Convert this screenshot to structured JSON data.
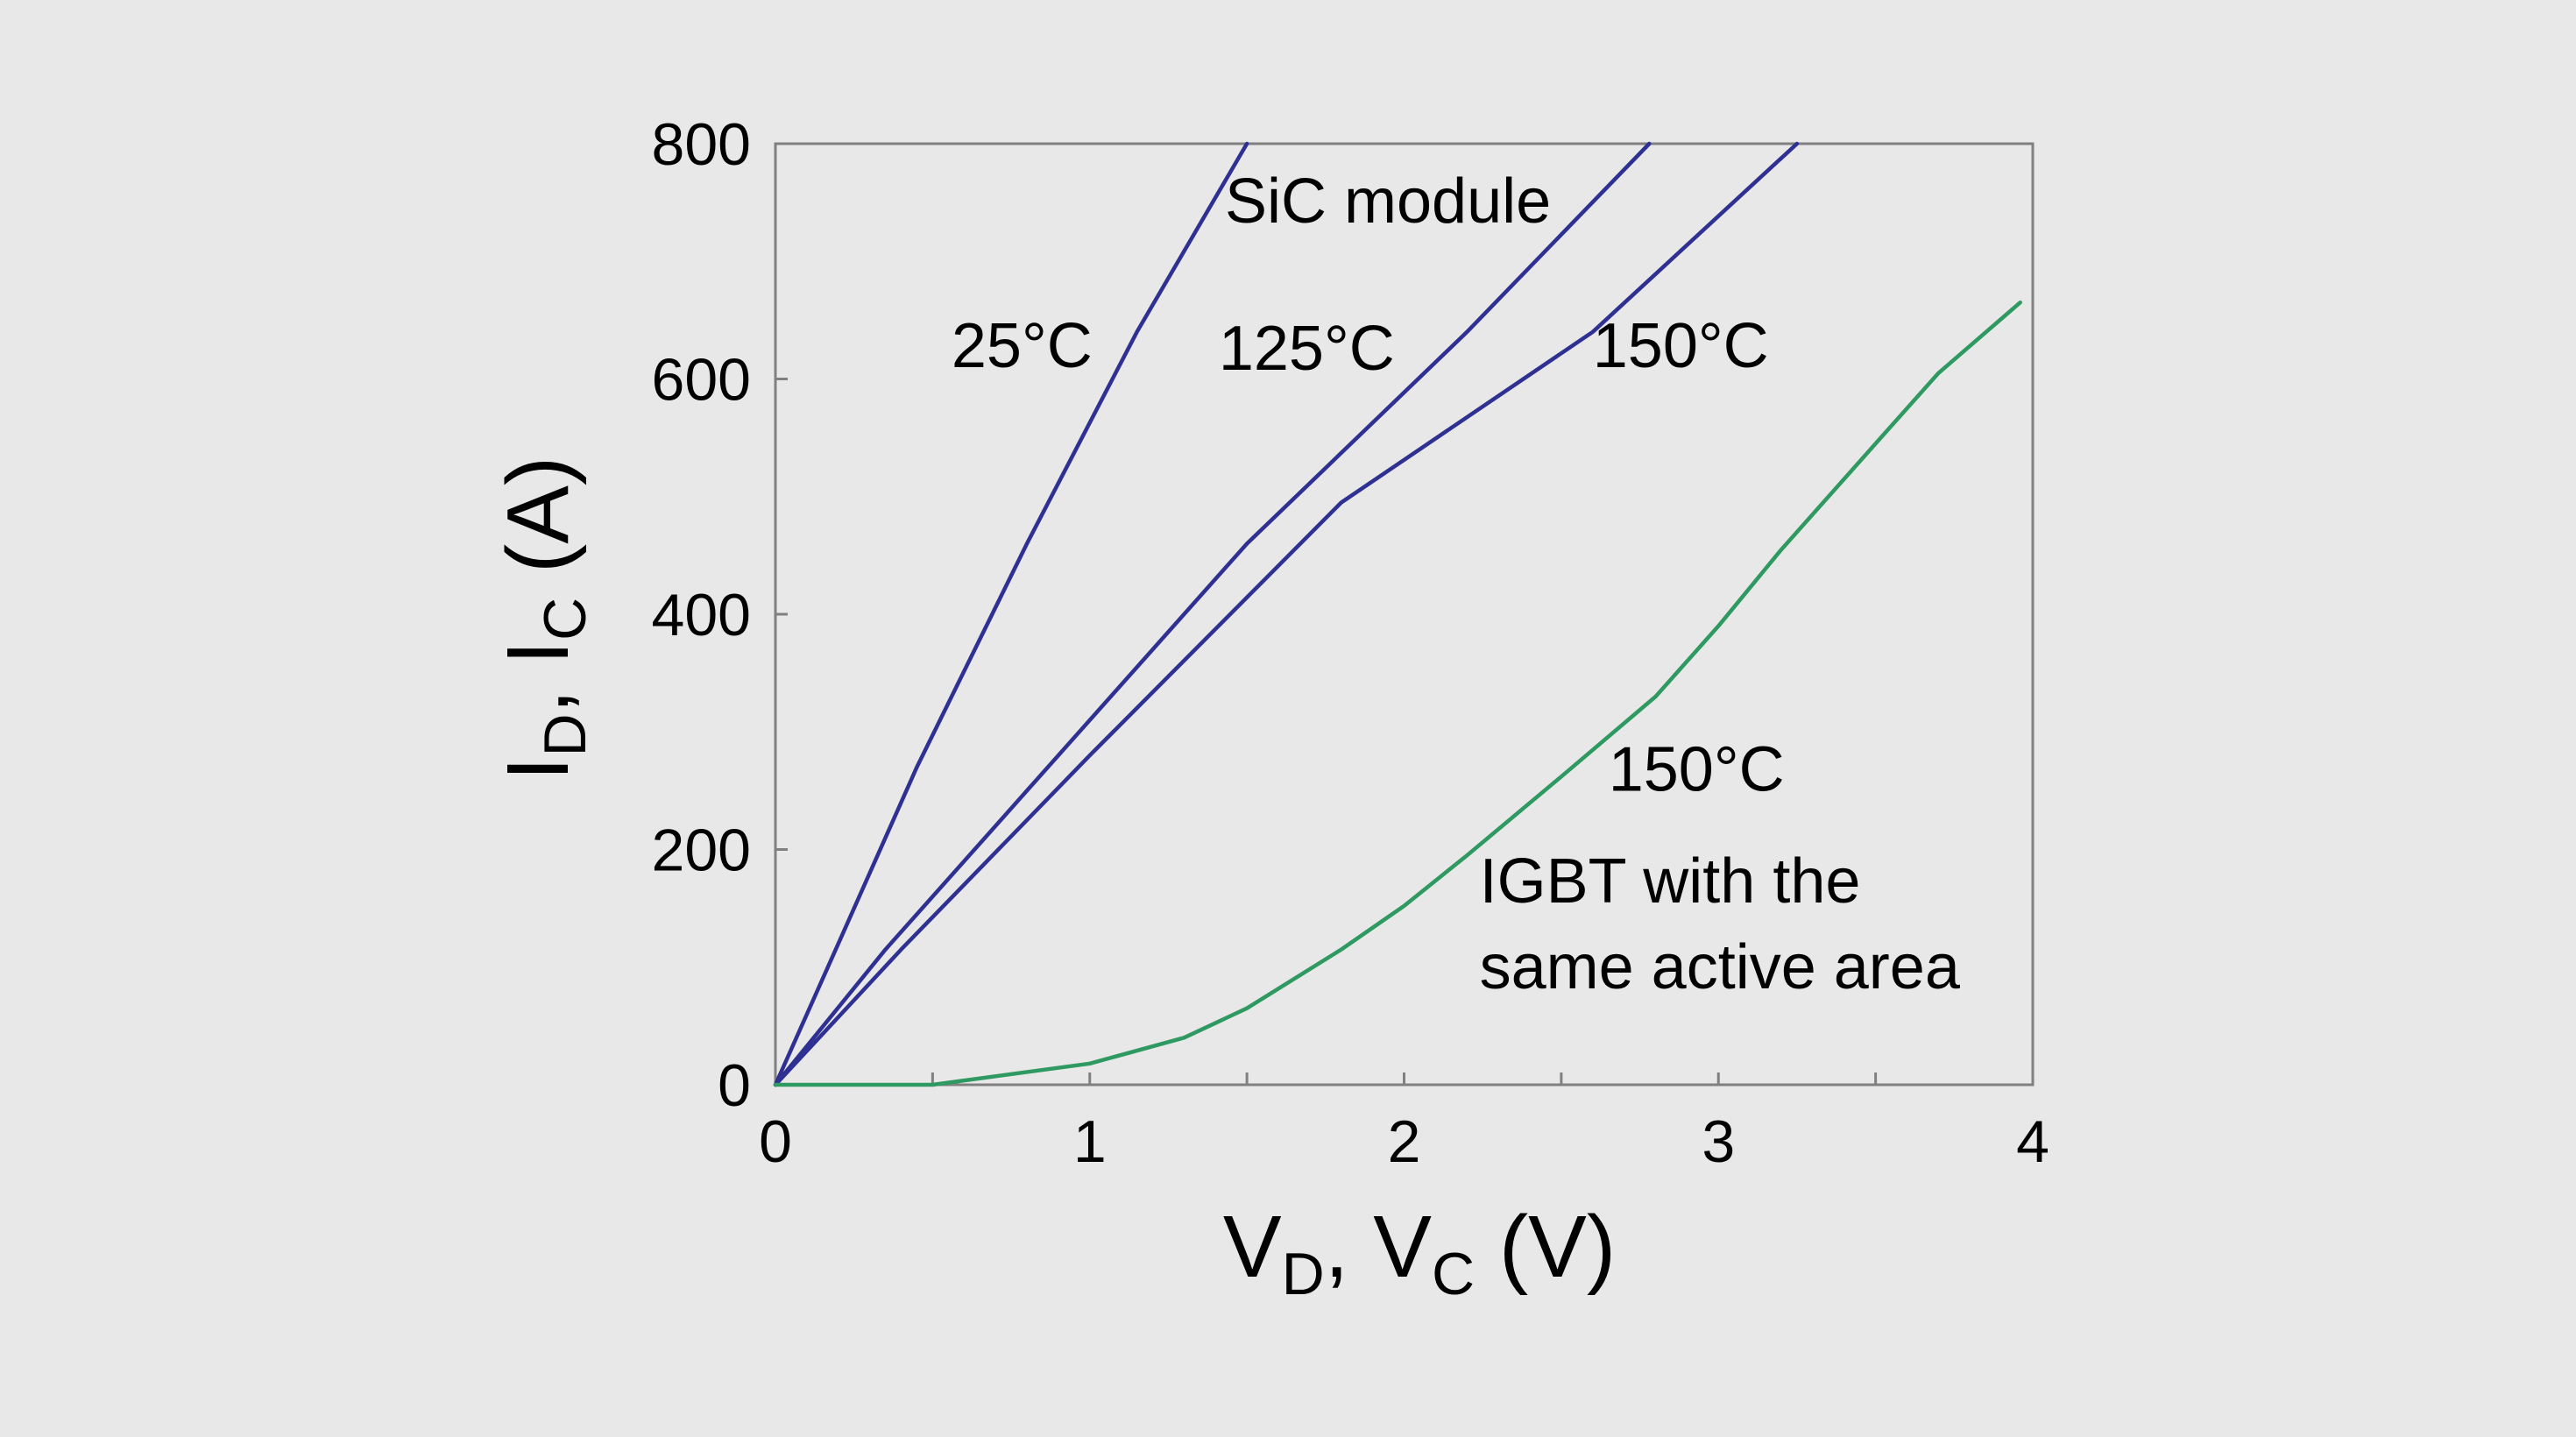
{
  "chart_data": {
    "type": "line",
    "title": "",
    "xlabel": {
      "parts": [
        {
          "text": "V",
          "sub": false
        },
        {
          "text": "D",
          "sub": true
        },
        {
          "text": ", V",
          "sub": false
        },
        {
          "text": "C",
          "sub": true
        },
        {
          "text": " (V)",
          "sub": false
        }
      ]
    },
    "ylabel": {
      "parts": [
        {
          "text": "I",
          "sub": false
        },
        {
          "text": "D",
          "sub": true
        },
        {
          "text": ", I",
          "sub": false
        },
        {
          "text": "C",
          "sub": true
        },
        {
          "text": " (A)",
          "sub": false
        }
      ]
    },
    "xlim": [
      0,
      4
    ],
    "ylim": [
      0,
      800
    ],
    "xticks": [
      "0",
      "1",
      "2",
      "3",
      "4"
    ],
    "yticks": [
      "0",
      "200",
      "400",
      "600",
      "800"
    ],
    "grid": false,
    "legend": "none",
    "colors": {
      "sic": "#2e3192",
      "igbt": "#2e9960",
      "background": "#e8e8e8",
      "frame": "#808080"
    },
    "series": [
      {
        "group": "sic",
        "x": [
          0,
          0.2,
          0.45,
          0.8,
          1.15,
          1.5
        ],
        "y": [
          0,
          120,
          270,
          460,
          640,
          800
        ]
      },
      {
        "group": "sic",
        "x": [
          0,
          0.35,
          0.8,
          1.5,
          2.2,
          2.78
        ],
        "y": [
          0,
          115,
          250,
          460,
          640,
          800
        ]
      },
      {
        "group": "sic",
        "x": [
          0,
          0.4,
          1,
          1.8,
          2.6,
          3.25
        ],
        "y": [
          0,
          115,
          280,
          495,
          640,
          800
        ]
      },
      {
        "group": "igbt",
        "x": [
          0,
          0.5,
          1,
          1.3,
          1.5,
          1.8,
          2,
          2.2,
          2.5,
          2.8,
          3,
          3.2,
          3.5,
          3.7,
          3.96
        ],
        "y": [
          0,
          0,
          18,
          40,
          65,
          115,
          152,
          195,
          262,
          330,
          390,
          455,
          545,
          605,
          665
        ]
      }
    ],
    "annotations": [
      {
        "text": "SiC module",
        "x": 1.43,
        "y": 733
      },
      {
        "text": "25°C",
        "x": 0.56,
        "y": 610
      },
      {
        "text": "125°C",
        "x": 1.41,
        "y": 608
      },
      {
        "text": "150°C",
        "x": 2.6,
        "y": 610
      },
      {
        "text": "150°C",
        "x": 2.65,
        "y": 250
      },
      {
        "text": "IGBT with the",
        "x": 2.24,
        "y": 155
      },
      {
        "text": "same active area",
        "x": 2.24,
        "y": 82
      }
    ]
  }
}
